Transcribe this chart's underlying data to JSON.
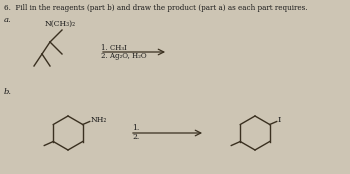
{
  "title": "6.  Fill in the reagents (part b) and draw the product (part a) as each part requires.",
  "bg_color": "#cdc5b4",
  "text_color": "#1a1a1a",
  "part_a_label": "a.",
  "part_b_label": "b.",
  "reagents_a_1": "1. CH₃I",
  "reagents_a_2": "2. Ag₂O, H₂O",
  "reagents_b_1": "1.",
  "reagents_b_2": "2.",
  "molecule_a_label": "N(CH₃)₂",
  "molecule_b_label": "NH₂",
  "product_b_label": "I",
  "line_color": "#3a3020",
  "arrow_color": "#3a3020"
}
